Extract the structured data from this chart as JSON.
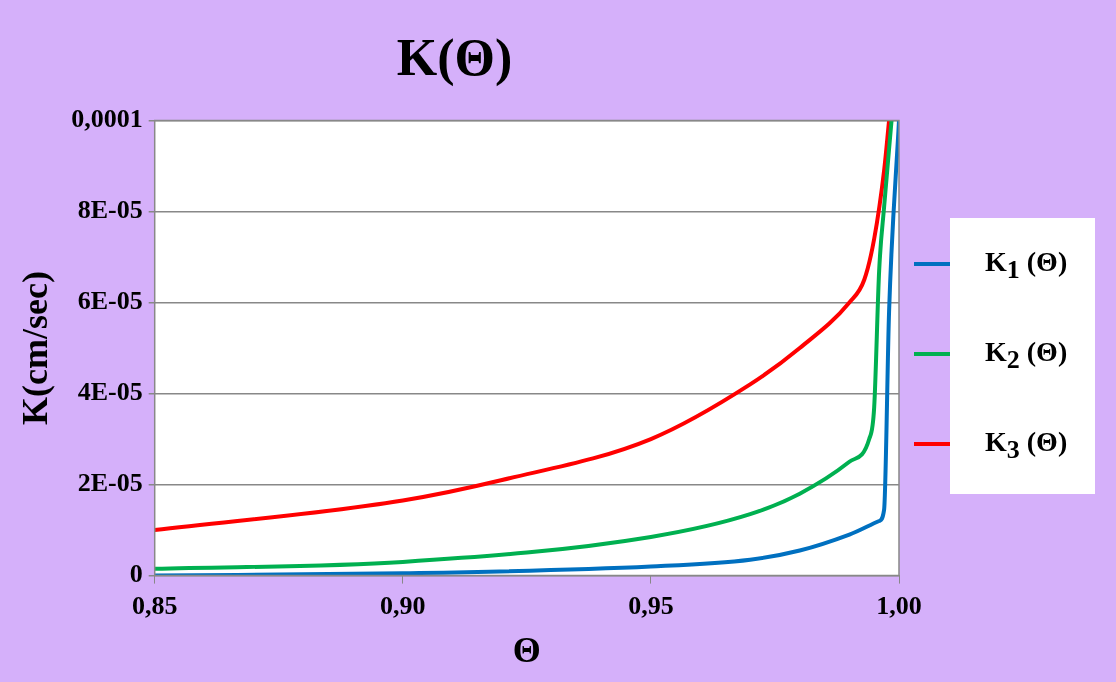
{
  "chart_data": {
    "type": "line",
    "title": "K(Θ)",
    "xlabel": "Θ",
    "ylabel": "K(cm/sec)",
    "xlim": [
      0.85,
      1.0
    ],
    "xticks": [
      {
        "value": 0.85,
        "label": "0,85"
      },
      {
        "value": 0.9,
        "label": "0,90"
      },
      {
        "value": 0.95,
        "label": "0,95"
      },
      {
        "value": 1.0,
        "label": "1,00"
      }
    ],
    "ylim": [
      0,
      0.0001
    ],
    "yticks": [
      0,
      {
        "value": 2e-05,
        "label": "2E-05"
      },
      {
        "value": 4e-05,
        "label": "4E-05"
      },
      {
        "value": 6e-05,
        "label": "6E-05"
      },
      {
        "value": 8e-05,
        "label": "8E-05"
      },
      {
        "value": 0.0001,
        "label": "0,0001"
      }
    ],
    "grid": "y",
    "legend": "right",
    "marker": "none",
    "line_style": "solid",
    "series": [
      {
        "name": "K$_{1}$ (Θ)",
        "color": "#0070c0",
        "x": [
          0.85,
          0.9,
          0.95,
          0.97,
          0.98,
          0.99,
          0.996,
          0.997,
          0.998,
          1.0
        ],
        "values": [
          0,
          5e-07,
          2e-06,
          3.5e-06,
          5.5e-06,
          9e-06,
          1.2e-05,
          1.45e-05,
          5.8e-05,
          0.0001
        ]
      },
      {
        "name": "K$_{2}$ (Θ)",
        "color": "#00b050",
        "x": [
          0.85,
          0.9,
          0.95,
          0.97,
          0.98,
          0.99,
          0.994,
          0.995,
          0.996,
          0.997,
          0.9985
        ],
        "values": [
          1.5e-06,
          3e-06,
          8.5e-06,
          1.35e-05,
          1.8e-05,
          2.5e-05,
          3e-05,
          3.7e-05,
          6.7e-05,
          8.1e-05,
          0.0001
        ]
      },
      {
        "name": "K$_{3}$ (Θ)",
        "color": "#ff0000",
        "x": [
          0.85,
          0.9,
          0.92,
          0.95,
          0.97,
          0.98,
          0.99,
          0.993,
          0.995,
          0.997,
          0.998
        ],
        "values": [
          1e-05,
          1.65e-05,
          2.1e-05,
          3e-05,
          4.2e-05,
          5e-05,
          6e-05,
          6.5e-05,
          7.4e-05,
          8.9e-05,
          0.0001
        ]
      }
    ]
  }
}
